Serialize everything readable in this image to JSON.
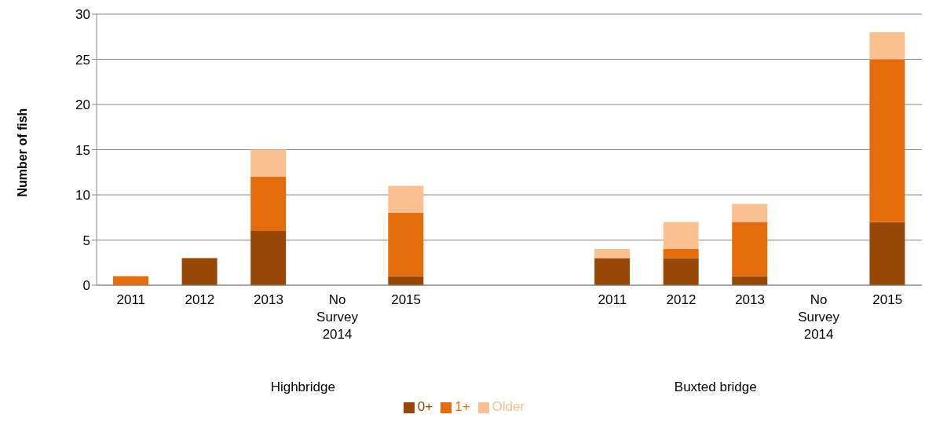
{
  "chart_data": {
    "type": "bar",
    "stacked": true,
    "ylabel": "Number of fish",
    "categories": [
      "2011",
      "2012",
      "2013",
      "No Survey 2014",
      "2015",
      null,
      null,
      "2011",
      "2012",
      "2013",
      "No Survey 2014",
      "2015"
    ],
    "series": [
      {
        "name": "0+",
        "color": "#974706",
        "values": [
          0,
          3,
          6,
          null,
          1,
          null,
          null,
          3,
          3,
          1,
          null,
          7
        ]
      },
      {
        "name": "1+",
        "color": "#e46c0a",
        "values": [
          1,
          0,
          6,
          null,
          7,
          null,
          null,
          0,
          1,
          6,
          null,
          18
        ]
      },
      {
        "name": "Older",
        "color": "#fac090",
        "values": [
          0,
          0,
          3,
          null,
          3,
          null,
          null,
          1,
          3,
          2,
          null,
          3
        ]
      }
    ],
    "ylim": [
      0,
      30
    ],
    "yticks": [
      0,
      5,
      10,
      15,
      20,
      25,
      30
    ],
    "grid": "y",
    "legend": "bottom",
    "annotations": [
      "Highbridge",
      "Buxted bridge"
    ]
  }
}
